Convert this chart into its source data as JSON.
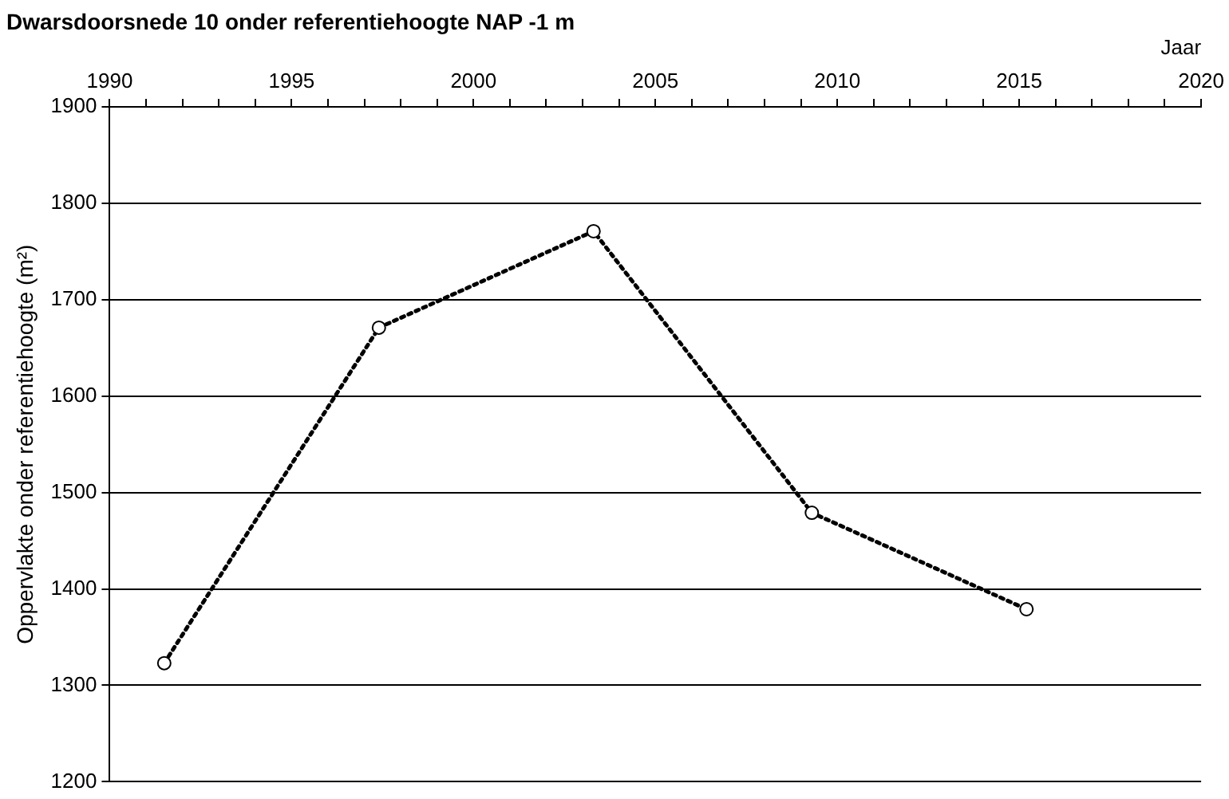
{
  "chart_data": {
    "type": "line",
    "title": "Dwarsdoorsnede 10 onder referentiehoogte NAP -1 m",
    "xlabel": "Jaar",
    "ylabel": "Oppervlakte onder referentiehoogte (m²)",
    "x": [
      1991.5,
      1997.4,
      2003.3,
      2009.3,
      2015.2
    ],
    "series": [
      {
        "color": "#000000",
        "values": [
          1323,
          1671,
          1771,
          1479,
          1379
        ]
      }
    ],
    "xlim": [
      1990,
      2020
    ],
    "xticks": [
      1990,
      {
        "value": 1991,
        "label": null
      },
      {
        "value": 1992,
        "label": null
      },
      {
        "value": 1993,
        "label": null
      },
      {
        "value": 1994,
        "label": null
      },
      1995,
      {
        "value": 1996,
        "label": null
      },
      {
        "value": 1997,
        "label": null
      },
      {
        "value": 1998,
        "label": null
      },
      {
        "value": 1999,
        "label": null
      },
      2000,
      {
        "value": 2001,
        "label": null
      },
      {
        "value": 2002,
        "label": null
      },
      {
        "value": 2003,
        "label": null
      },
      {
        "value": 2004,
        "label": null
      },
      2005,
      {
        "value": 2006,
        "label": null
      },
      {
        "value": 2007,
        "label": null
      },
      {
        "value": 2008,
        "label": null
      },
      {
        "value": 2009,
        "label": null
      },
      2010,
      {
        "value": 2011,
        "label": null
      },
      {
        "value": 2012,
        "label": null
      },
      {
        "value": 2013,
        "label": null
      },
      {
        "value": 2014,
        "label": null
      },
      2015,
      {
        "value": 2016,
        "label": null
      },
      {
        "value": 2017,
        "label": null
      },
      {
        "value": 2018,
        "label": null
      },
      {
        "value": 2019,
        "label": null
      },
      2020
    ],
    "ylim": [
      1200,
      1900
    ],
    "yticks": [
      1200,
      1300,
      1400,
      1500,
      1600,
      1700,
      1800,
      1900
    ],
    "grid": "y",
    "legend": false,
    "marker": "circle",
    "line_style": "dotted"
  }
}
